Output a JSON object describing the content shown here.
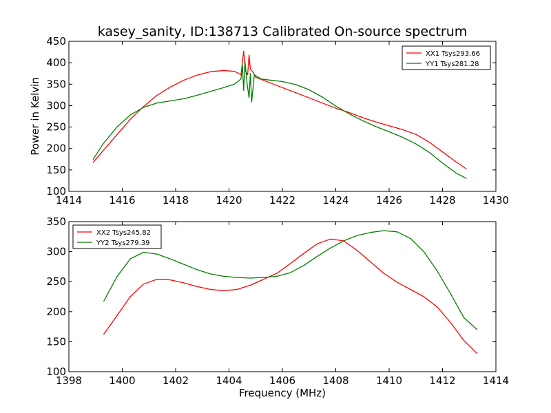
{
  "figure": {
    "title": "kasey_sanity, ID:138713 Calibrated On-source spectrum",
    "xlabel": "Frequency (MHz)",
    "ylabel": "Power in Kelvin"
  },
  "chart_data": [
    {
      "type": "line",
      "title": "kasey_sanity, ID:138713 Calibrated On-source spectrum",
      "xlabel": "",
      "ylabel": "Power in Kelvin",
      "xlim": [
        1414,
        1430
      ],
      "ylim": [
        100,
        450
      ],
      "xticks": [
        1414,
        1416,
        1418,
        1420,
        1422,
        1424,
        1426,
        1428,
        1430
      ],
      "yticks": [
        100,
        150,
        200,
        250,
        300,
        350,
        400,
        450
      ],
      "grid": false,
      "legend_position": "top-right",
      "series": [
        {
          "name": "XX1 Tsys293.66",
          "color": "#ff0000",
          "x": [
            1414.9,
            1415.3,
            1415.8,
            1416.3,
            1416.8,
            1417.3,
            1417.8,
            1418.3,
            1418.8,
            1419.3,
            1419.8,
            1420.2,
            1420.45,
            1420.55,
            1420.62,
            1420.7,
            1420.75,
            1420.8,
            1420.9,
            1421.0,
            1421.5,
            1422.0,
            1422.5,
            1423.0,
            1423.5,
            1424.0,
            1424.5,
            1425.0,
            1425.5,
            1426.0,
            1426.5,
            1427.0,
            1427.5,
            1428.0,
            1428.5,
            1428.9
          ],
          "y": [
            167,
            196,
            232,
            268,
            298,
            324,
            343,
            359,
            371,
            379,
            382,
            380,
            372,
            427,
            380,
            372,
            418,
            385,
            378,
            366,
            354,
            342,
            330,
            318,
            306,
            294,
            284,
            272,
            262,
            253,
            244,
            233,
            215,
            192,
            169,
            152
          ]
        },
        {
          "name": "YY1 Tsys281.28",
          "color": "#008000",
          "x": [
            1414.9,
            1415.3,
            1415.8,
            1416.3,
            1416.8,
            1417.3,
            1417.8,
            1418.3,
            1418.8,
            1419.3,
            1419.8,
            1420.2,
            1420.45,
            1420.5,
            1420.55,
            1420.6,
            1420.68,
            1420.75,
            1420.8,
            1420.85,
            1420.95,
            1421.2,
            1421.6,
            1422.0,
            1422.5,
            1423.0,
            1423.5,
            1424.0,
            1424.5,
            1425.0,
            1425.5,
            1426.0,
            1426.5,
            1427.0,
            1427.5,
            1428.0,
            1428.5,
            1428.9
          ],
          "y": [
            174,
            212,
            250,
            278,
            296,
            306,
            311,
            316,
            324,
            333,
            342,
            350,
            362,
            395,
            335,
            402,
            350,
            318,
            375,
            308,
            372,
            362,
            359,
            356,
            349,
            337,
            320,
            299,
            281,
            265,
            251,
            239,
            226,
            211,
            191,
            166,
            143,
            130
          ]
        }
      ]
    },
    {
      "type": "line",
      "title": "",
      "xlabel": "Frequency (MHz)",
      "ylabel": "",
      "xlim": [
        1398,
        1414
      ],
      "ylim": [
        100,
        350
      ],
      "xticks": [
        1398,
        1400,
        1402,
        1404,
        1406,
        1408,
        1410,
        1412,
        1414
      ],
      "yticks": [
        100,
        150,
        200,
        250,
        300,
        350
      ],
      "grid": false,
      "legend_position": "top-left",
      "series": [
        {
          "name": "XX2 Tsys245.82",
          "color": "#ff0000",
          "x": [
            1399.3,
            1399.8,
            1400.3,
            1400.8,
            1401.3,
            1401.8,
            1402.3,
            1402.8,
            1403.3,
            1403.8,
            1404.3,
            1404.8,
            1405.3,
            1405.8,
            1406.3,
            1406.8,
            1407.3,
            1407.8,
            1408.3,
            1408.8,
            1409.3,
            1409.8,
            1410.3,
            1410.8,
            1411.3,
            1411.8,
            1412.3,
            1412.8,
            1413.3
          ],
          "y": [
            162,
            193,
            225,
            246,
            254,
            253,
            248,
            242,
            237,
            235,
            237,
            244,
            254,
            264,
            280,
            297,
            313,
            321,
            318,
            302,
            283,
            264,
            249,
            237,
            225,
            208,
            182,
            152,
            130
          ]
        },
        {
          "name": "YY2 Tsys279.39",
          "color": "#008000",
          "x": [
            1399.3,
            1399.8,
            1400.3,
            1400.8,
            1401.3,
            1401.8,
            1402.3,
            1402.8,
            1403.3,
            1403.8,
            1404.3,
            1404.8,
            1405.3,
            1405.8,
            1406.3,
            1406.8,
            1407.3,
            1407.8,
            1408.3,
            1408.8,
            1409.3,
            1409.8,
            1410.3,
            1410.8,
            1411.3,
            1411.8,
            1412.3,
            1412.8,
            1413.3
          ],
          "y": [
            217,
            258,
            288,
            299,
            296,
            288,
            279,
            270,
            263,
            259,
            257,
            256,
            257,
            259,
            265,
            277,
            292,
            306,
            318,
            327,
            332,
            335,
            333,
            322,
            300,
            268,
            230,
            190,
            170
          ]
        }
      ]
    }
  ]
}
